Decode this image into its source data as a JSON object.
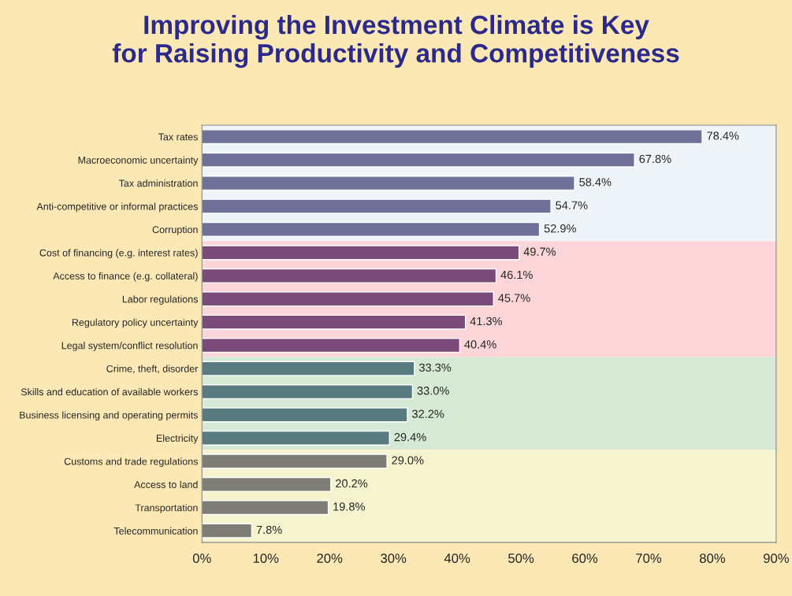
{
  "chart_data": {
    "type": "bar",
    "orientation": "horizontal",
    "title": "Improving the Investment Climate is Key\nfor Raising Productivity and Competitiveness",
    "categories": [
      "Tax rates",
      "Macroeconomic uncertainty",
      "Tax administration",
      "Anti-competitive or informal practices",
      "Corruption",
      "Cost of financing (e.g. interest rates)",
      "Access to finance (e.g. collateral)",
      "Labor regulations",
      "Regulatory policy uncertainty",
      "Legal system/conflict resolution",
      "Crime, theft, disorder",
      "Skills and education of available workers",
      "Business licensing and operating permits",
      "Electricity",
      "Customs and trade regulations",
      "Access to land",
      "Transportation",
      "Telecommunication"
    ],
    "values": [
      78.4,
      67.8,
      58.4,
      54.7,
      52.9,
      49.7,
      46.1,
      45.7,
      41.3,
      40.4,
      33.3,
      33.0,
      32.2,
      29.4,
      29.0,
      20.2,
      19.8,
      7.8
    ],
    "value_labels": [
      "78.4%",
      "67.8%",
      "58.4%",
      "54.7%",
      "52.9%",
      "49.7%",
      "46.1%",
      "45.7%",
      "41.3%",
      "40.4%",
      "33.3%",
      "33.0%",
      "32.2%",
      "29.4%",
      "29.0%",
      "20.2%",
      "19.8%",
      "7.8%"
    ],
    "colors": [
      "#6f7199",
      "#6f7199",
      "#6f7199",
      "#6f7199",
      "#6f7199",
      "#7a4a78",
      "#7a4a78",
      "#7a4a78",
      "#7a4a78",
      "#7a4a78",
      "#587b80",
      "#587b80",
      "#587b80",
      "#587b80",
      "#7e7e76",
      "#7e7e76",
      "#7e7e76",
      "#7e7e76"
    ],
    "xlim": [
      0,
      90
    ],
    "xticks": [
      {
        "value": 0,
        "label": "0%"
      },
      {
        "value": 10,
        "label": "10%"
      },
      {
        "value": 20,
        "label": "20%"
      },
      {
        "value": 30,
        "label": "30%"
      },
      {
        "value": 40,
        "label": "40%"
      },
      {
        "value": 50,
        "label": "50%"
      },
      {
        "value": 60,
        "label": "60%"
      },
      {
        "value": 70,
        "label": "70%"
      },
      {
        "value": 80,
        "label": "80%"
      },
      {
        "value": 90,
        "label": "90%"
      }
    ],
    "bands": [
      {
        "axis": "y",
        "from": "Tax rates",
        "to": "Corruption",
        "color": "#eef4f8"
      },
      {
        "axis": "y",
        "from": "Cost of financing (e.g. interest rates)",
        "to": "Legal system/conflict resolution",
        "color": "#fcd5d8"
      },
      {
        "axis": "y",
        "from": "Crime, theft, disorder",
        "to": "Electricity",
        "color": "#d6e9d4"
      },
      {
        "axis": "y",
        "from": "Customs and trade regulations",
        "to": "Telecommunication",
        "color": "#f6f3cf"
      }
    ],
    "grid": false,
    "legend": false
  }
}
